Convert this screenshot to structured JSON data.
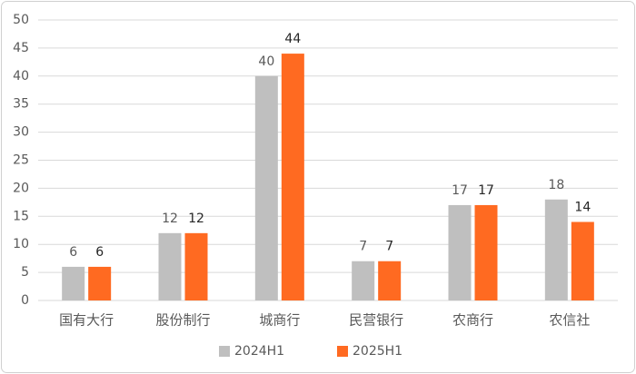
{
  "chart_data": {
    "type": "bar",
    "categories": [
      "国有大行",
      "股份制行",
      "城商行",
      "民营银行",
      "农商行",
      "农信社"
    ],
    "series": [
      {
        "name": "2024H1",
        "color": "#bfbfbf",
        "values": [
          6,
          12,
          40,
          7,
          17,
          18
        ]
      },
      {
        "name": "2025H1",
        "color": "#ff6a21",
        "values": [
          6,
          12,
          44,
          7,
          17,
          14
        ]
      }
    ],
    "ylim": [
      0,
      50
    ],
    "yticks": [
      0,
      5,
      10,
      15,
      20,
      25,
      30,
      35,
      40,
      45,
      50
    ],
    "grid": true,
    "legend": "bottom"
  }
}
